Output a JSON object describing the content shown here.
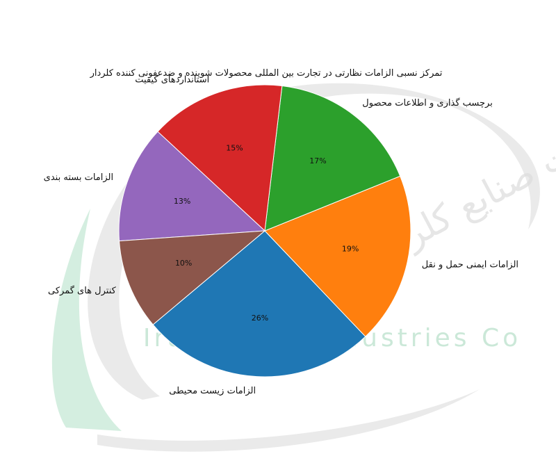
{
  "chart_data": {
    "type": "pie",
    "title": "تمرکز نسبی الزامات نظارتی در تجارت بین المللی محصولات شوینده و ضدعفونی کننده کلردار",
    "slices": [
      {
        "label": "الزامات زیست محیطی",
        "value": 26,
        "pct_text": "26%",
        "color": "#1f77b4"
      },
      {
        "label": "الزامات ایمنی حمل و نقل",
        "value": 19,
        "pct_text": "19%",
        "color": "#ff7f0e"
      },
      {
        "label": "برچسب گذاری و اطلاعات محصول",
        "value": 17,
        "pct_text": "17%",
        "color": "#2ca02c"
      },
      {
        "label": "استانداردهای کیفیت",
        "value": 15,
        "pct_text": "15%",
        "color": "#d62728"
      },
      {
        "label": "الزامات بسته بندی",
        "value": 13,
        "pct_text": "13%",
        "color": "#9467bd"
      },
      {
        "label": "کنترل های گمرکی",
        "value": 10,
        "pct_text": "10%",
        "color": "#8c564b"
      }
    ]
  },
  "watermark": {
    "text": "Iran Chlor Industries Co",
    "brand_text": "شرکت صنایع کلر ایران"
  }
}
